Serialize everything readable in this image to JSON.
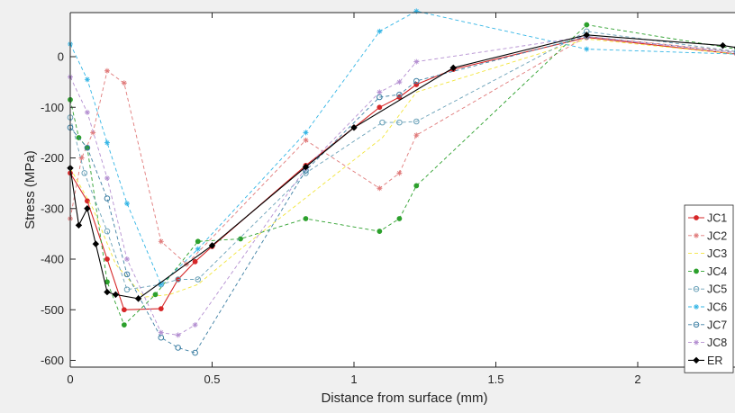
{
  "chart_data": {
    "type": "line",
    "title": "",
    "xlabel": "Distance from surface (mm)",
    "ylabel": "Stress (MPa)",
    "xlim": [
      0,
      2.35
    ],
    "ylim": [
      -600,
      90
    ],
    "x_ticks": [
      0,
      0.5,
      1,
      1.5,
      2
    ],
    "x_tick_labels": [
      "0",
      "0.5",
      "1",
      "1.5",
      "2"
    ],
    "y_ticks": [
      -600,
      -500,
      -400,
      -300,
      -200,
      -100,
      0
    ],
    "y_tick_labels": [
      "-600",
      "-500",
      "-400",
      "-300",
      "-200",
      "-100",
      "0"
    ],
    "grid": false,
    "legend_position": "bottom-right",
    "series": [
      {
        "name": "JC1",
        "color": "#d62728",
        "dash": "solid",
        "marker": "dot",
        "x": [
          0,
          0.06,
          0.13,
          0.19,
          0.32,
          0.38,
          0.44,
          0.5,
          0.83,
          1.0,
          1.09,
          1.16,
          1.22,
          1.35,
          1.82,
          2.35
        ],
        "y": [
          -230,
          -285,
          -400,
          -500,
          -498,
          -440,
          -405,
          -375,
          -215,
          -140,
          -100,
          -80,
          -55,
          -25,
          38,
          5
        ]
      },
      {
        "name": "JC2",
        "color": "#e07a7a",
        "dash": "dashed",
        "marker": "star",
        "x": [
          0,
          0.04,
          0.08,
          0.13,
          0.19,
          0.32,
          0.41,
          0.83,
          1.09,
          1.16,
          1.22,
          1.82,
          2.35
        ],
        "y": [
          -320,
          -200,
          -150,
          -28,
          -52,
          -365,
          -410,
          -165,
          -260,
          -230,
          -155,
          40,
          10
        ]
      },
      {
        "name": "JC3",
        "color": "#f2e53a",
        "dash": "dashed",
        "marker": "none",
        "x": [
          0,
          0.08,
          0.16,
          0.26,
          0.35,
          0.45,
          0.6,
          1.1,
          1.22,
          1.82,
          2.35
        ],
        "y": [
          -220,
          -300,
          -410,
          -475,
          -470,
          -450,
          -380,
          -160,
          -70,
          35,
          5
        ]
      },
      {
        "name": "JC4",
        "color": "#2ca02c",
        "dash": "dashed",
        "marker": "dot",
        "x": [
          0,
          0.03,
          0.06,
          0.13,
          0.19,
          0.3,
          0.45,
          0.6,
          0.83,
          1.09,
          1.16,
          1.22,
          1.82,
          2.35
        ],
        "y": [
          -85,
          -160,
          -180,
          -445,
          -530,
          -470,
          -365,
          -360,
          -320,
          -345,
          -320,
          -255,
          63,
          15
        ]
      },
      {
        "name": "JC5",
        "color": "#6aa1b8",
        "dash": "dashed",
        "marker": "circle",
        "x": [
          0,
          0.05,
          0.13,
          0.2,
          0.32,
          0.38,
          0.45,
          0.83,
          1.1,
          1.16,
          1.22,
          1.82,
          2.35
        ],
        "y": [
          -120,
          -230,
          -345,
          -460,
          -450,
          -440,
          -440,
          -230,
          -130,
          -130,
          -128,
          50,
          10
        ]
      },
      {
        "name": "JC6",
        "color": "#33b5e5",
        "dash": "dashed",
        "marker": "star",
        "x": [
          0,
          0.06,
          0.13,
          0.2,
          0.32,
          0.45,
          0.83,
          1.09,
          1.22,
          1.82,
          2.35
        ],
        "y": [
          25,
          -45,
          -170,
          -290,
          -450,
          -380,
          -150,
          50,
          90,
          15,
          5
        ]
      },
      {
        "name": "JC7",
        "color": "#3d7fa3",
        "dash": "dashed",
        "marker": "circle",
        "x": [
          0,
          0.06,
          0.13,
          0.2,
          0.32,
          0.38,
          0.44,
          0.83,
          1.09,
          1.16,
          1.22,
          1.82,
          2.35
        ],
        "y": [
          -140,
          -180,
          -280,
          -430,
          -555,
          -575,
          -585,
          -225,
          -80,
          -75,
          -48,
          40,
          8
        ]
      },
      {
        "name": "JC8",
        "color": "#b48fd1",
        "dash": "dashed",
        "marker": "star",
        "x": [
          0,
          0.06,
          0.13,
          0.2,
          0.32,
          0.38,
          0.44,
          0.83,
          1.09,
          1.16,
          1.22,
          1.82,
          2.35
        ],
        "y": [
          -40,
          -110,
          -240,
          -400,
          -545,
          -550,
          -530,
          -220,
          -70,
          -50,
          -10,
          40,
          8
        ]
      },
      {
        "name": "ER",
        "color": "#000000",
        "dash": "solid",
        "marker": "diamond",
        "x": [
          0,
          0.03,
          0.06,
          0.09,
          0.13,
          0.16,
          0.24,
          0.5,
          0.83,
          1.0,
          1.35,
          1.82,
          2.3,
          2.35
        ],
        "y": [
          -220,
          -333,
          -300,
          -370,
          -465,
          -470,
          -478,
          -373,
          -218,
          -140,
          -22,
          43,
          22,
          18
        ]
      }
    ]
  }
}
